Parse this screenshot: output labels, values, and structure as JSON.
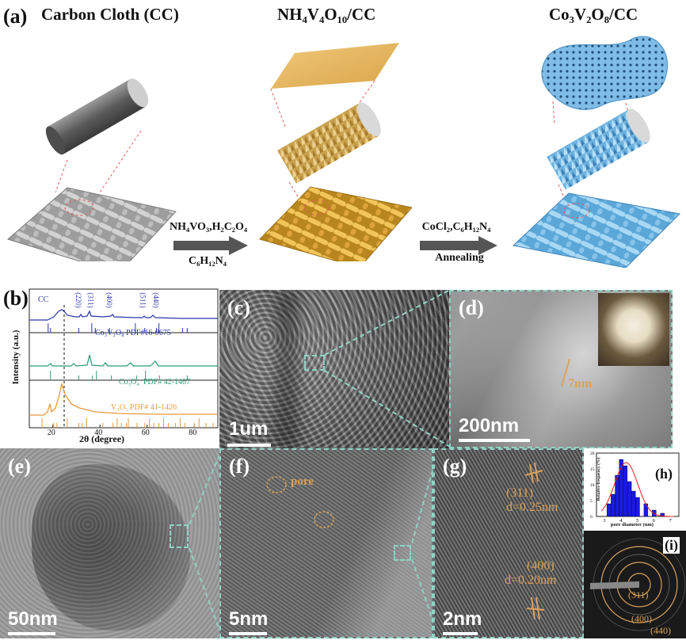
{
  "panel_a": {
    "letter": "(a)",
    "step1_title": "Carbon Cloth (CC)",
    "step2_title": "NH₄V₄O₁₀/CC",
    "step3_title": "Co₃V₂O₈/CC",
    "arrow1_top": "NH₄VO₃,H₂C₂O₄",
    "arrow1_bottom": "C₆H₁₂N₄",
    "arrow2_top": "CoCl₂,C₆H₁₂N₄",
    "arrow2_bottom": "Annealing"
  },
  "panel_b": {
    "letter": "(b)",
    "chart_data": {
      "type": "line",
      "xlabel": "2θ (degree)",
      "ylabel": "Intensity (a.u.)",
      "xlim": [
        10,
        90
      ],
      "xticks": [
        "20",
        "40",
        "60",
        "80"
      ],
      "peak_labels": [
        "CC",
        "(220)",
        "(311)",
        "(400)",
        "(511)",
        "(440)"
      ],
      "peak_positions_2theta": [
        25.5,
        30.5,
        36,
        43.5,
        58,
        63.5
      ],
      "series": [
        {
          "name": "Co₃V₂O₈",
          "reference": "PDF#16-0675",
          "color": "#2b35a8"
        },
        {
          "name": "Co₃O₄",
          "reference": "PDF# 42-1467",
          "color": "#2a9e78"
        },
        {
          "name": "V₂O₅",
          "reference": "PDF# 41-1426",
          "color": "#e49a3c"
        }
      ]
    }
  },
  "panel_c": {
    "letter": "(c)",
    "scale": "1um"
  },
  "panel_d": {
    "letter": "(d)",
    "scale": "200nm",
    "annotation": "7nm"
  },
  "panel_e": {
    "letter": "(e)",
    "scale": "50nm"
  },
  "panel_f": {
    "letter": "(f)",
    "scale": "5nm",
    "annotation": "pore"
  },
  "panel_g": {
    "letter": "(g)",
    "scale": "2nm",
    "plane1": "(311)",
    "d1": "d=0.25nm",
    "plane2": "(400)",
    "d2": "d=0.20nm"
  },
  "panel_h": {
    "letter": "(h)",
    "chart_data": {
      "type": "bar",
      "xlabel": "pore diameter (nm)",
      "ylabel": "Relative frequency (%)",
      "xticks": [
        "3",
        "4",
        "5",
        "6",
        "7"
      ],
      "yticks": [
        "0",
        "5",
        "10",
        "15",
        "20"
      ],
      "ylim": [
        0,
        20
      ],
      "bins": [
        3.25,
        3.5,
        3.75,
        4.0,
        4.25,
        4.5,
        4.75,
        5.0,
        5.5,
        6.0,
        6.5
      ],
      "values": [
        4,
        7,
        13,
        18,
        16,
        11,
        8,
        6,
        4,
        2,
        1
      ],
      "bar_color": "#1a1ae6",
      "fit_color": "#e02020"
    }
  },
  "panel_i": {
    "letter": "(i)",
    "ring1": "(311)",
    "ring2": "(400)",
    "ring3": "(440)"
  }
}
